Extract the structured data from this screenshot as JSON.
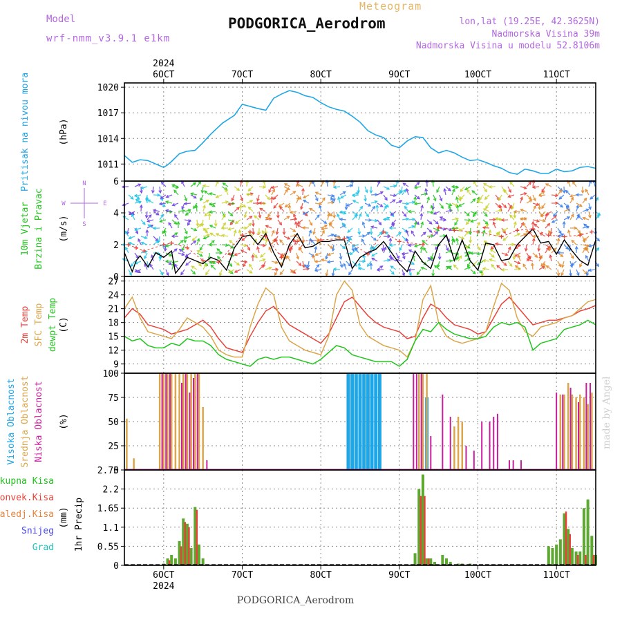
{
  "header": {
    "model_label": "Model",
    "model_name": "wrf-nmm_v3.9.1 e1km",
    "title": "PODGORICA_Aerodrom",
    "subtitle": "Meteogram",
    "coords": "lon,lat (19.25E, 42.3625N)",
    "elevation": "Nadmorska Visina 39m",
    "elevation_model": "Nadmorska Visina u modelu 52.8106m"
  },
  "footer": "PODGORICA_Aerodrom",
  "credit": "made by Angel",
  "colors": {
    "pressure": "#1fa6e6",
    "wind_speed": "#000000",
    "wind_gust": "#e8423a",
    "temp_2m": "#e8423a",
    "temp_sfc": "#dba64a",
    "dewpoint": "#22c51e",
    "cloud_high": "#1fa6e6",
    "cloud_mid": "#dba64a",
    "cloud_low": "#c81e9c",
    "precip_total": "#5ca830",
    "precip_conv": "#e8423a",
    "grid": "#888888"
  },
  "time_axis": {
    "year": "2024",
    "ticks": [
      "6OCT",
      "7OCT",
      "8OCT",
      "9OCT",
      "10OCT",
      "11OCT"
    ]
  },
  "chart_data": [
    {
      "type": "line",
      "panel": "pressure",
      "ylabel": "Pritisak na nivou mora",
      "unit": "(hPa)",
      "ylim": [
        1009,
        1020.5
      ],
      "yticks": [
        1011,
        1014,
        1017,
        1020
      ],
      "grid": true,
      "series": [
        {
          "x": [
            5.5,
            5.6,
            5.7,
            5.8,
            5.9,
            6.0,
            6.05,
            6.1,
            6.2,
            6.3,
            6.4,
            6.5,
            6.6,
            6.75,
            6.9,
            7.0,
            7.2,
            7.3,
            7.4,
            7.5,
            7.6,
            7.7,
            7.8,
            7.9,
            8.0,
            8.1,
            8.2,
            8.3,
            8.4,
            8.5,
            8.6,
            8.7,
            8.8,
            8.9,
            9.0,
            9.1,
            9.2,
            9.3,
            9.4,
            9.5,
            9.6,
            9.7,
            9.8,
            9.9,
            10.0,
            10.1,
            10.2,
            10.3,
            10.4,
            10.5,
            10.6,
            10.7,
            10.8,
            10.9,
            11.0,
            11.1,
            11.2,
            11.3,
            11.4,
            11.5
          ],
          "y": [
            1012.0,
            1011.2,
            1011.5,
            1011.4,
            1011.0,
            1010.6,
            1010.9,
            1011.3,
            1012.2,
            1012.5,
            1012.6,
            1013.5,
            1014.5,
            1015.8,
            1016.7,
            1018.0,
            1017.5,
            1017.3,
            1018.7,
            1019.2,
            1019.6,
            1019.4,
            1019.0,
            1018.8,
            1018.2,
            1017.7,
            1017.4,
            1017.2,
            1016.6,
            1015.9,
            1014.9,
            1014.4,
            1014.1,
            1013.2,
            1012.9,
            1013.7,
            1014.2,
            1014.1,
            1012.9,
            1012.3,
            1012.6,
            1012.3,
            1011.8,
            1011.4,
            1011.5,
            1011.2,
            1010.8,
            1010.5,
            1010.0,
            1009.8,
            1010.4,
            1010.2,
            1009.9,
            1009.9,
            1010.4,
            1010.1,
            1010.2,
            1010.6,
            1010.7,
            1010.5
          ]
        }
      ]
    },
    {
      "type": "line",
      "panel": "wind",
      "ylabel": [
        "10m Vjetar",
        "Brzina i Pravac"
      ],
      "unit": "(m/s)",
      "compass": [
        "N",
        "E",
        "S",
        "W"
      ],
      "ylim": [
        0,
        6
      ],
      "yticks": [
        0,
        2,
        4,
        6
      ],
      "grid": true,
      "series": [
        {
          "x": [
            5.5,
            5.6,
            5.65,
            5.7,
            5.8,
            5.9,
            6.0,
            6.1,
            6.15,
            6.2,
            6.3,
            6.4,
            6.5,
            6.6,
            6.7,
            6.8,
            6.9,
            7.0,
            7.1,
            7.2,
            7.3,
            7.4,
            7.5,
            7.6,
            7.7,
            7.8,
            7.9,
            8.0,
            8.1,
            8.2,
            8.3,
            8.4,
            8.5,
            8.6,
            8.7,
            8.8,
            8.9,
            9.0,
            9.1,
            9.2,
            9.3,
            9.4,
            9.5,
            9.6,
            9.7,
            9.8,
            9.9,
            10.0,
            10.1,
            10.2,
            10.3,
            10.4,
            10.5,
            10.6,
            10.7,
            10.8,
            10.9,
            11.0,
            11.1,
            11.2,
            11.3,
            11.4,
            11.5
          ],
          "y": [
            1.5,
            0.3,
            1.0,
            1.3,
            0.6,
            1.5,
            1.2,
            1.6,
            0.2,
            0.5,
            1.2,
            1.0,
            0.8,
            1.2,
            1.0,
            0.4,
            1.8,
            2.5,
            2.6,
            2.0,
            2.7,
            1.5,
            0.6,
            2.0,
            2.7,
            1.8,
            1.9,
            2.2,
            2.2,
            2.3,
            2.3,
            0.5,
            1.2,
            1.5,
            1.7,
            2.2,
            1.5,
            0.8,
            0.3,
            1.6,
            0.9,
            0.5,
            2.0,
            2.6,
            1.0,
            2.3,
            1.0,
            0.4,
            2.1,
            2.0,
            1.0,
            1.1,
            2.0,
            2.5,
            3.0,
            2.1,
            2.2,
            1.4,
            2.3,
            1.6,
            1.0,
            0.7,
            2.3
          ]
        },
        {
          "x": [
            5.55,
            5.65,
            5.75,
            6.0,
            6.1,
            6.3,
            6.5,
            6.7,
            7.0,
            7.1,
            7.3,
            7.5,
            7.7,
            8.0,
            8.3,
            8.6,
            8.8,
            9.0,
            9.3,
            9.5,
            9.7,
            10.0,
            10.3,
            10.5,
            10.7,
            10.9,
            11.1,
            11.3,
            11.45
          ],
          "y": [
            2.0,
            1.8,
            1.6,
            2.0,
            2.1,
            1.8,
            1.0,
            0.9,
            2.6,
            2.8,
            2.5,
            1.2,
            2.2,
            2.3,
            2.4,
            1.4,
            2.8,
            2.2,
            2.0,
            3.1,
            2.9,
            2.8,
            2.5,
            2.9,
            3.0,
            2.6,
            2.5,
            2.6,
            2.8
          ]
        }
      ]
    },
    {
      "type": "line",
      "panel": "temperature",
      "ylabel": [
        "2m Temp",
        "SFC Temp",
        "dewpt Temp"
      ],
      "unit": "(C)",
      "ylim": [
        7,
        28
      ],
      "yticks": [
        9,
        12,
        15,
        18,
        21,
        24,
        27
      ],
      "grid": true,
      "series": [
        {
          "name": "2m Temp",
          "x": [
            5.5,
            5.6,
            5.7,
            5.8,
            5.9,
            6.0,
            6.1,
            6.2,
            6.3,
            6.4,
            6.5,
            6.6,
            6.7,
            6.8,
            6.9,
            7.0,
            7.1,
            7.2,
            7.3,
            7.4,
            7.5,
            7.6,
            7.7,
            7.8,
            7.9,
            8.0,
            8.1,
            8.2,
            8.3,
            8.4,
            8.5,
            8.6,
            8.7,
            8.8,
            8.9,
            9.0,
            9.1,
            9.2,
            9.3,
            9.4,
            9.5,
            9.6,
            9.7,
            9.8,
            9.9,
            10.0,
            10.1,
            10.2,
            10.3,
            10.4,
            10.5,
            10.6,
            10.7,
            10.8,
            10.9,
            11.0,
            11.1,
            11.2,
            11.3,
            11.4,
            11.5
          ],
          "y": [
            19.0,
            21.0,
            19.8,
            17.5,
            17.0,
            16.5,
            15.5,
            16.0,
            16.5,
            17.5,
            18.5,
            17.0,
            14.5,
            12.5,
            12.0,
            11.5,
            15.0,
            18.0,
            20.5,
            21.5,
            19.5,
            17.5,
            16.5,
            15.5,
            14.5,
            13.5,
            15.5,
            19.0,
            22.5,
            23.5,
            21.5,
            19.5,
            18.0,
            17.0,
            16.5,
            16.0,
            14.5,
            15.0,
            19.0,
            22.0,
            21.0,
            19.0,
            17.5,
            17.0,
            16.5,
            15.5,
            16.0,
            19.0,
            22.0,
            23.5,
            21.5,
            19.5,
            17.5,
            18.0,
            18.5,
            18.5,
            19.0,
            19.5,
            20.5,
            21.0,
            21.7
          ]
        },
        {
          "name": "SFC Temp",
          "x": [
            5.5,
            5.6,
            5.7,
            5.8,
            5.9,
            6.0,
            6.1,
            6.2,
            6.3,
            6.4,
            6.5,
            6.6,
            6.7,
            6.8,
            6.9,
            7.0,
            7.1,
            7.2,
            7.3,
            7.4,
            7.5,
            7.6,
            7.7,
            7.8,
            7.9,
            8.0,
            8.1,
            8.2,
            8.3,
            8.4,
            8.5,
            8.6,
            8.7,
            8.8,
            8.9,
            9.0,
            9.1,
            9.2,
            9.3,
            9.4,
            9.5,
            9.6,
            9.7,
            9.8,
            9.9,
            10.0,
            10.1,
            10.2,
            10.3,
            10.4,
            10.5,
            10.6,
            10.7,
            10.8,
            10.9,
            11.0,
            11.1,
            11.2,
            11.3,
            11.4,
            11.5
          ],
          "y": [
            21.0,
            23.5,
            19.0,
            16.0,
            15.5,
            15.0,
            14.5,
            16.5,
            19.0,
            18.0,
            17.0,
            15.0,
            12.0,
            11.0,
            10.5,
            10.5,
            17.0,
            22.0,
            25.5,
            24.0,
            17.0,
            14.0,
            13.0,
            12.0,
            11.5,
            11.0,
            15.0,
            24.0,
            27.0,
            25.0,
            17.5,
            15.0,
            14.0,
            13.0,
            12.5,
            12.0,
            10.5,
            14.0,
            23.0,
            26.0,
            18.0,
            15.0,
            14.0,
            13.5,
            14.0,
            14.5,
            16.0,
            21.5,
            26.5,
            25.0,
            19.0,
            16.0,
            15.0,
            17.0,
            17.5,
            18.0,
            19.0,
            19.5,
            21.0,
            22.5,
            23.0
          ]
        },
        {
          "name": "dewpt Temp",
          "x": [
            5.5,
            5.6,
            5.7,
            5.8,
            5.9,
            6.0,
            6.1,
            6.2,
            6.3,
            6.4,
            6.5,
            6.6,
            6.7,
            6.8,
            6.9,
            7.0,
            7.1,
            7.2,
            7.3,
            7.4,
            7.5,
            7.6,
            7.7,
            7.8,
            7.9,
            8.0,
            8.1,
            8.2,
            8.3,
            8.4,
            8.5,
            8.6,
            8.7,
            8.8,
            8.9,
            9.0,
            9.1,
            9.2,
            9.3,
            9.4,
            9.5,
            9.6,
            9.7,
            9.8,
            9.9,
            10.0,
            10.1,
            10.2,
            10.3,
            10.4,
            10.5,
            10.6,
            10.7,
            10.8,
            10.9,
            11.0,
            11.1,
            11.2,
            11.3,
            11.4,
            11.5
          ],
          "y": [
            15.0,
            14.0,
            14.5,
            13.0,
            12.5,
            12.5,
            13.5,
            13.0,
            14.5,
            14.0,
            14.0,
            13.0,
            11.0,
            10.0,
            9.5,
            9.0,
            8.5,
            10.0,
            10.5,
            10.0,
            10.5,
            10.5,
            10.0,
            9.5,
            9.0,
            10.0,
            11.5,
            13.0,
            12.5,
            11.0,
            10.5,
            10.0,
            9.5,
            9.5,
            9.5,
            8.5,
            10.0,
            14.0,
            16.5,
            16.0,
            18.0,
            16.5,
            15.5,
            15.0,
            14.5,
            14.5,
            15.0,
            17.0,
            18.0,
            17.5,
            18.0,
            17.0,
            12.0,
            13.5,
            14.0,
            14.5,
            16.5,
            17.0,
            17.5,
            18.5,
            17.5
          ]
        }
      ]
    },
    {
      "type": "bar",
      "panel": "cloud",
      "ylabel": [
        "Visoka Oblacnost",
        "Srednja Oblacnost",
        "Niska Oblacnost"
      ],
      "unit": "(%)",
      "ylim": [
        0,
        100
      ],
      "yticks": [
        0,
        25,
        50,
        75,
        100
      ],
      "grid": true,
      "series": [
        {
          "name": "Visoka Oblacnost",
          "x": [
            8.35,
            8.4,
            8.45,
            8.5,
            8.55,
            8.6,
            8.65,
            8.7,
            8.75,
            9.35
          ],
          "values": [
            100,
            100,
            100,
            100,
            100,
            100,
            100,
            100,
            100,
            75
          ]
        },
        {
          "name": "Srednja Oblacnost",
          "x": [
            5.53,
            5.62,
            5.95,
            6.0,
            6.05,
            6.1,
            6.15,
            6.2,
            6.25,
            6.3,
            6.35,
            6.4,
            6.45,
            6.5,
            9.25,
            9.3,
            9.35,
            9.7,
            9.75,
            9.8,
            11.05,
            11.1,
            11.15,
            11.2,
            11.25,
            11.3,
            11.35,
            11.4,
            11.45
          ],
          "values": [
            53,
            12,
            100,
            100,
            100,
            100,
            100,
            100,
            100,
            100,
            100,
            100,
            100,
            65,
            100,
            100,
            100,
            45,
            55,
            50,
            78,
            78,
            90,
            78,
            75,
            78,
            75,
            68,
            80
          ]
        },
        {
          "name": "Niska Oblacnost",
          "x": [
            5.98,
            6.03,
            6.08,
            6.23,
            6.28,
            6.33,
            6.38,
            6.43,
            6.55,
            9.18,
            9.22,
            9.28,
            9.4,
            9.55,
            9.65,
            9.85,
            9.95,
            10.05,
            10.15,
            10.2,
            10.25,
            10.4,
            10.45,
            10.55,
            11.0,
            11.08,
            11.18,
            11.28,
            11.38,
            11.43
          ],
          "values": [
            100,
            100,
            100,
            90,
            100,
            80,
            95,
            100,
            10,
            100,
            100,
            100,
            35,
            78,
            55,
            25,
            20,
            50,
            50,
            55,
            58,
            10,
            10,
            10,
            80,
            78,
            85,
            70,
            90,
            90
          ]
        }
      ]
    },
    {
      "type": "bar",
      "panel": "precip",
      "ylabel": "1hr Precip",
      "unit": "(mm)",
      "legend": [
        "Ukupna Kisa",
        "Konvek.Kisa",
        "Zaledj.Kisa",
        "Snijeg",
        "Grad"
      ],
      "ylim": [
        0,
        2.75
      ],
      "yticks": [
        0,
        0.55,
        1.1,
        1.65,
        2.2,
        2.75
      ],
      "grid": true,
      "series": [
        {
          "name": "Ukupna Kisa",
          "x": [
            6.0,
            6.05,
            6.1,
            6.15,
            6.2,
            6.25,
            6.3,
            6.35,
            6.4,
            6.45,
            6.5,
            9.2,
            9.25,
            9.3,
            9.35,
            9.4,
            9.45,
            9.55,
            9.6,
            9.65,
            9.75,
            9.8,
            9.9,
            10.9,
            10.95,
            11.0,
            11.05,
            11.1,
            11.15,
            11.2,
            11.25,
            11.3,
            11.35,
            11.4,
            11.45,
            11.5
          ],
          "values": [
            0.05,
            0.2,
            0.3,
            0.2,
            0.7,
            1.35,
            1.2,
            0.5,
            1.68,
            0.6,
            0.2,
            0.35,
            2.2,
            2.62,
            0.2,
            0.2,
            0.1,
            0.3,
            0.2,
            0.1,
            0.05,
            0.05,
            0.05,
            0.55,
            0.5,
            0.6,
            0.75,
            1.5,
            1.05,
            0.5,
            0.4,
            0.4,
            1.65,
            1.9,
            0.85,
            0.3
          ]
        },
        {
          "name": "Konvek.Kisa",
          "x": [
            6.07,
            6.22,
            6.27,
            6.32,
            6.42,
            9.27,
            9.32,
            9.37,
            11.12,
            11.17,
            11.27,
            11.37,
            11.47
          ],
          "values": [
            0.15,
            0.55,
            1.25,
            1.1,
            1.6,
            2.0,
            2.0,
            0.2,
            1.55,
            0.9,
            0.3,
            0.3,
            0.3
          ]
        }
      ]
    }
  ]
}
